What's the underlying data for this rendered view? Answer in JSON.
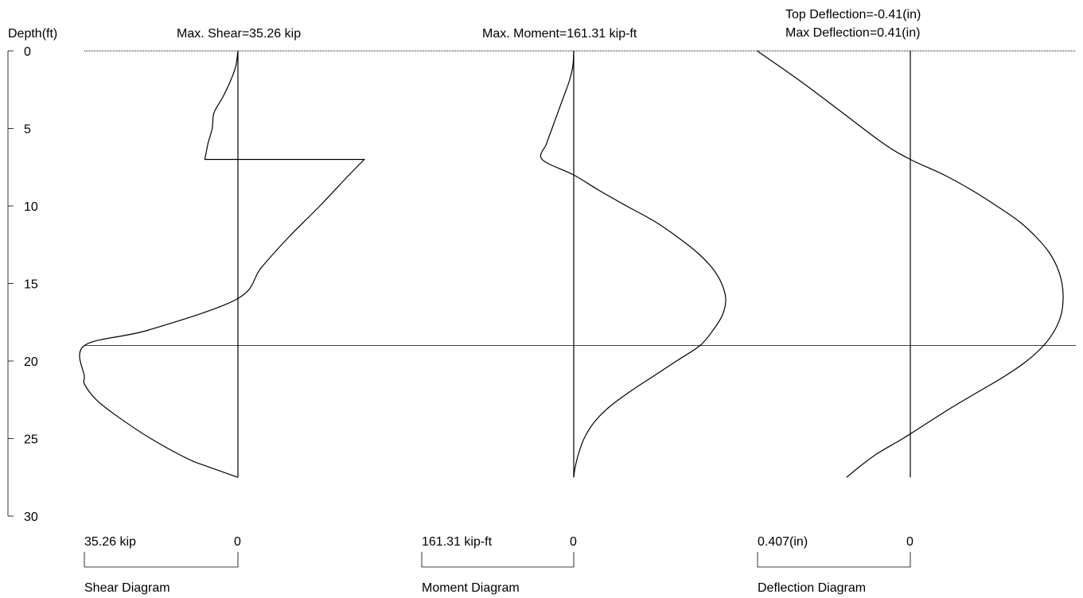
{
  "header": {
    "depth_label": "Depth(ft)",
    "shear_title": "Max. Shear=35.26 kip",
    "moment_title": "Max. Moment=161.31 kip-ft",
    "top_deflection": "Top Deflection=-0.41(in)",
    "max_deflection": "Max Deflection=0.41(in)"
  },
  "legends": {
    "shear": {
      "scale_label": "35.26 kip",
      "zero_label": "0",
      "name": "Shear Diagram"
    },
    "moment": {
      "scale_label": "161.31 kip-ft",
      "zero_label": "0",
      "name": "Moment Diagram"
    },
    "deflection": {
      "scale_label": "0.407(in)",
      "zero_label": "0",
      "name": "Deflection Diagram"
    }
  },
  "chart_data": {
    "type": "line",
    "y_axis": {
      "label": "Depth(ft)",
      "range": [
        0,
        30
      ],
      "ticks": [
        0,
        5,
        10,
        15,
        20,
        25,
        30
      ],
      "inverted": true
    },
    "reference_depths": [
      0,
      19
    ],
    "pile_tip_depth": 27.5,
    "shear": {
      "name": "Shear Diagram",
      "unit": "kip",
      "max": 35.26,
      "points": [
        [
          0,
          0
        ],
        [
          1,
          -0.5
        ],
        [
          2,
          -1.8
        ],
        [
          3,
          -3.5
        ],
        [
          4,
          -5.5
        ],
        [
          5,
          -5.9
        ],
        [
          6,
          -6.9
        ],
        [
          7,
          -7.6
        ],
        [
          7,
          29
        ],
        [
          8,
          25.5
        ],
        [
          10,
          18.8
        ],
        [
          12,
          11.7
        ],
        [
          14,
          5.3
        ],
        [
          16,
          -0.2
        ],
        [
          18,
          -20.5
        ],
        [
          19,
          -35.26
        ],
        [
          21,
          -35.26
        ],
        [
          21.5,
          -35.2
        ],
        [
          22.5,
          -32.5
        ],
        [
          23.5,
          -28
        ],
        [
          25,
          -20
        ],
        [
          26.5,
          -10
        ],
        [
          27.5,
          0
        ]
      ]
    },
    "moment": {
      "name": "Moment Diagram",
      "unit": "kip-ft",
      "max": 161.31,
      "points": [
        [
          0,
          0
        ],
        [
          1,
          -1
        ],
        [
          2,
          -5
        ],
        [
          3,
          -11
        ],
        [
          4,
          -17
        ],
        [
          5,
          -23
        ],
        [
          6,
          -29
        ],
        [
          7,
          -33.5
        ],
        [
          8,
          0
        ],
        [
          9,
          27
        ],
        [
          10,
          56
        ],
        [
          11,
          86
        ],
        [
          12,
          110
        ],
        [
          13,
          131
        ],
        [
          14,
          147
        ],
        [
          15,
          157
        ],
        [
          16,
          161.31
        ],
        [
          17,
          158
        ],
        [
          18,
          148
        ],
        [
          19,
          134
        ],
        [
          20,
          109
        ],
        [
          21,
          84
        ],
        [
          22,
          59
        ],
        [
          23,
          37
        ],
        [
          24,
          21
        ],
        [
          25,
          11
        ],
        [
          26,
          5
        ],
        [
          27,
          1
        ],
        [
          27.5,
          0
        ]
      ]
    },
    "deflection": {
      "name": "Deflection Diagram",
      "unit": "in",
      "scale": 0.407,
      "top": -0.41,
      "max": 0.41,
      "points": [
        [
          0,
          -0.408
        ],
        [
          2,
          -0.29
        ],
        [
          4,
          -0.18
        ],
        [
          6,
          -0.07
        ],
        [
          7,
          0
        ],
        [
          8,
          0.09
        ],
        [
          9,
          0.165
        ],
        [
          10,
          0.23
        ],
        [
          11,
          0.29
        ],
        [
          12,
          0.335
        ],
        [
          13,
          0.37
        ],
        [
          14,
          0.392
        ],
        [
          15,
          0.404
        ],
        [
          16,
          0.407
        ],
        [
          17,
          0.402
        ],
        [
          18,
          0.385
        ],
        [
          19,
          0.355
        ],
        [
          20,
          0.31
        ],
        [
          21,
          0.25
        ],
        [
          22,
          0.18
        ],
        [
          23,
          0.11
        ],
        [
          24,
          0.045
        ],
        [
          25,
          -0.02
        ],
        [
          26,
          -0.09
        ],
        [
          27,
          -0.145
        ],
        [
          27.5,
          -0.17
        ]
      ]
    }
  }
}
